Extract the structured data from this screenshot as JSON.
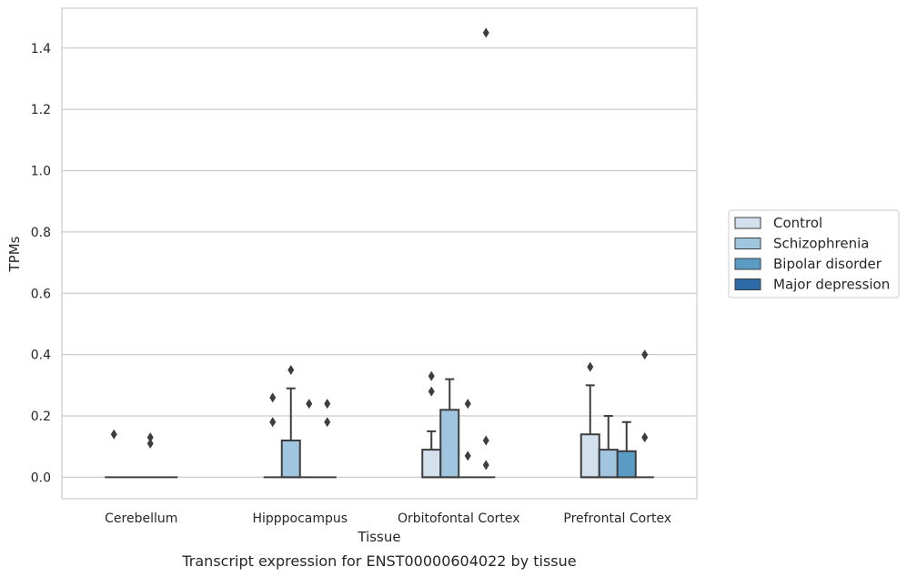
{
  "caption": "Transcript expression for ENST00000604022 by tissue",
  "chart_data": {
    "type": "box",
    "title": "",
    "xlabel": "Tissue",
    "ylabel": "TPMs",
    "ylim": [
      -0.07,
      1.53
    ],
    "yticks": [
      "0.0",
      "0.2",
      "0.4",
      "0.6",
      "0.8",
      "1.0",
      "1.2",
      "1.4"
    ],
    "grid": "horizontal",
    "legend_position": "right",
    "categories": [
      "Cerebellum",
      "Hipppocampus",
      "Orbitofontal Cortex",
      "Prefrontal Cortex"
    ],
    "series": [
      {
        "name": "Control",
        "color": "#d3e1ef",
        "boxes": [
          {
            "q1": 0,
            "median": 0,
            "q3": 0,
            "whisker_low": 0,
            "whisker_high": 0,
            "outliers": [
              0.14
            ]
          },
          {
            "q1": 0,
            "median": 0,
            "q3": 0,
            "whisker_low": 0,
            "whisker_high": 0,
            "outliers": [
              0.26,
              0.18
            ]
          },
          {
            "q1": 0,
            "median": 0,
            "q3": 0.09,
            "whisker_low": 0,
            "whisker_high": 0.15,
            "outliers": [
              0.33,
              0.28
            ]
          },
          {
            "q1": 0,
            "median": 0,
            "q3": 0.14,
            "whisker_low": 0,
            "whisker_high": 0.3,
            "outliers": [
              0.36
            ]
          }
        ]
      },
      {
        "name": "Schizophrenia",
        "color": "#9fc5df",
        "boxes": [
          {
            "q1": 0,
            "median": 0,
            "q3": 0,
            "whisker_low": 0,
            "whisker_high": 0,
            "outliers": []
          },
          {
            "q1": 0,
            "median": 0,
            "q3": 0.12,
            "whisker_low": 0,
            "whisker_high": 0.29,
            "outliers": [
              0.35
            ]
          },
          {
            "q1": 0,
            "median": 0,
            "q3": 0.22,
            "whisker_low": 0,
            "whisker_high": 0.32,
            "outliers": []
          },
          {
            "q1": 0,
            "median": 0,
            "q3": 0.09,
            "whisker_low": 0,
            "whisker_high": 0.2,
            "outliers": []
          }
        ]
      },
      {
        "name": "Bipolar disorder",
        "color": "#5a9bc6",
        "boxes": [
          {
            "q1": 0,
            "median": 0,
            "q3": 0,
            "whisker_low": 0,
            "whisker_high": 0,
            "outliers": [
              0.13,
              0.11
            ]
          },
          {
            "q1": 0,
            "median": 0,
            "q3": 0,
            "whisker_low": 0,
            "whisker_high": 0,
            "outliers": [
              0.24
            ]
          },
          {
            "q1": 0,
            "median": 0,
            "q3": 0,
            "whisker_low": 0,
            "whisker_high": 0,
            "outliers": [
              0.24,
              0.07
            ]
          },
          {
            "q1": 0,
            "median": 0,
            "q3": 0.085,
            "whisker_low": 0,
            "whisker_high": 0.18,
            "outliers": []
          }
        ]
      },
      {
        "name": "Major depression",
        "color": "#2c6aa8",
        "boxes": [
          {
            "q1": 0,
            "median": 0,
            "q3": 0,
            "whisker_low": 0,
            "whisker_high": 0,
            "outliers": []
          },
          {
            "q1": 0,
            "median": 0,
            "q3": 0,
            "whisker_low": 0,
            "whisker_high": 0,
            "outliers": [
              0.24,
              0.18
            ]
          },
          {
            "q1": 0,
            "median": 0,
            "q3": 0,
            "whisker_low": 0,
            "whisker_high": 0,
            "outliers": [
              1.45,
              0.12,
              0.04
            ]
          },
          {
            "q1": 0,
            "median": 0,
            "q3": 0,
            "whisker_low": 0,
            "whisker_high": 0,
            "outliers": [
              0.4,
              0.13
            ]
          }
        ]
      }
    ]
  }
}
